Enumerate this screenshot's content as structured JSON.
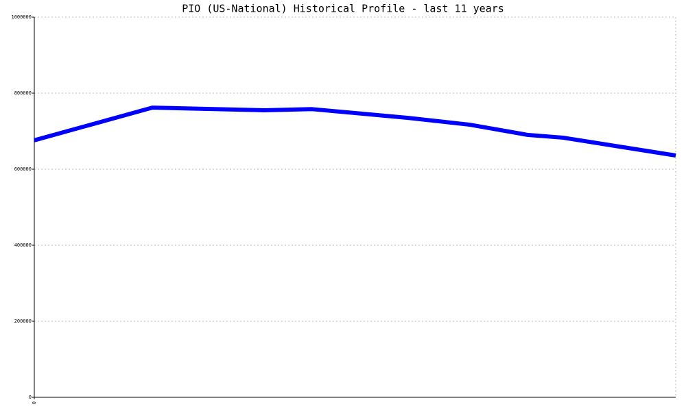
{
  "chart_data": {
    "type": "line",
    "title": "PIO (US-National) Historical Profile - last 11 years",
    "x": [
      0,
      18.4,
      35.8,
      43.3,
      58.3,
      67.9,
      77.0,
      82.4,
      100
    ],
    "series": [
      {
        "color": "#0000ff",
        "values": [
          676000,
          762000,
          755000,
          758000,
          735000,
          717000,
          690000,
          683000,
          636000
        ]
      }
    ],
    "xlim": [
      0,
      100
    ],
    "xticks": [
      0
    ],
    "ylim": [
      0,
      1000000
    ],
    "yticks": [
      0,
      200000,
      400000,
      600000,
      800000,
      1000000
    ],
    "grid": true
  }
}
